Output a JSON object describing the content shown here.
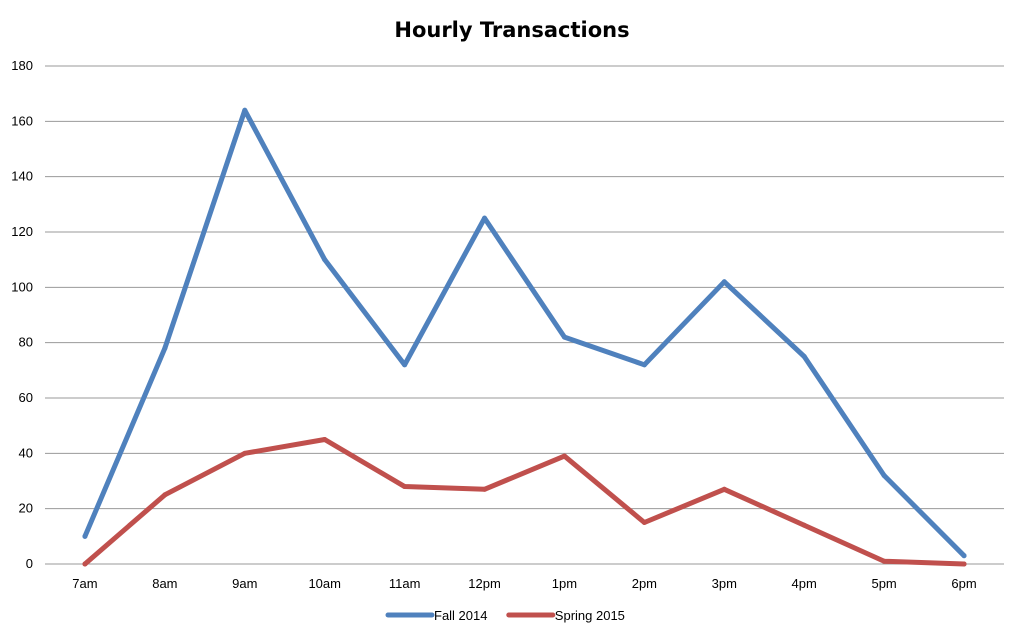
{
  "chart_data": {
    "type": "line",
    "title": "Hourly Transactions",
    "xlabel": "",
    "ylabel": "",
    "categories": [
      "7am",
      "8am",
      "9am",
      "10am",
      "11am",
      "12pm",
      "1pm",
      "2pm",
      "3pm",
      "4pm",
      "5pm",
      "6pm"
    ],
    "ylim": [
      0,
      180
    ],
    "yticks": [
      0,
      20,
      40,
      60,
      80,
      100,
      120,
      140,
      160,
      180
    ],
    "grid": true,
    "legend_position": "bottom",
    "series": [
      {
        "name": "Fall 2014",
        "color": "#4F81BD",
        "values": [
          10,
          78,
          164,
          110,
          72,
          125,
          82,
          72,
          102,
          75,
          32,
          3
        ]
      },
      {
        "name": "Spring 2015",
        "color": "#C0504D",
        "values": [
          0,
          25,
          40,
          45,
          28,
          27,
          39,
          15,
          27,
          14,
          1,
          0
        ]
      }
    ]
  }
}
